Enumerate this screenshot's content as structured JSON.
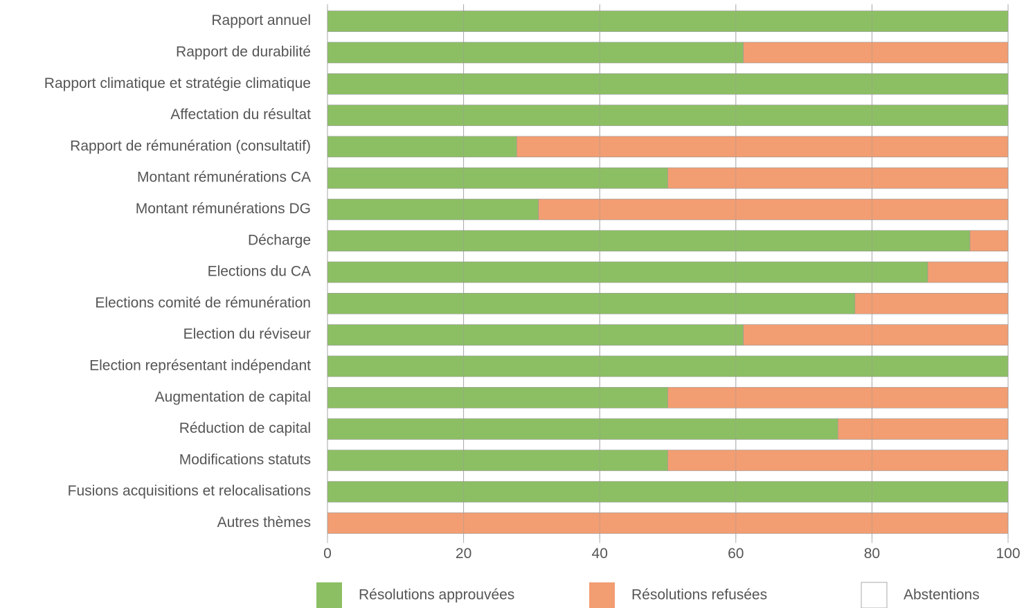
{
  "chart_data": {
    "type": "bar",
    "orientation": "horizontal",
    "stacked": true,
    "categories": [
      "Rapport annuel",
      "Rapport de durabilité",
      "Rapport climatique et stratégie climatique",
      "Affectation du résultat",
      "Rapport de rémunération (consultatif)",
      "Montant rémunérations CA",
      "Montant rémunérations DG",
      "Décharge",
      "Elections du CA",
      "Elections comité de rémunération",
      "Election du réviseur",
      "Election représentant indépendant",
      "Augmentation de capital",
      "Réduction de capital",
      "Modifications statuts",
      "Fusions acquisitions et relocalisations",
      "Autres thèmes"
    ],
    "series": [
      {
        "name": "Résolutions approuvées",
        "color": "#8cbf63",
        "values": [
          100,
          61.1,
          100,
          100,
          27.8,
          50,
          31.0,
          94.4,
          88.2,
          77.5,
          61.1,
          100,
          50,
          75,
          50,
          100,
          0
        ]
      },
      {
        "name": "Résolutions refusées",
        "color": "#f29d72",
        "values": [
          0,
          38.9,
          0,
          0,
          72.2,
          50,
          69.0,
          5.6,
          11.8,
          22.5,
          38.9,
          0,
          50,
          25,
          50,
          0,
          100
        ]
      },
      {
        "name": "Abstentions",
        "color": "#ffffff",
        "values": [
          0,
          0,
          0,
          0,
          0,
          0,
          0,
          0,
          0,
          0,
          0,
          0,
          0,
          0,
          0,
          0,
          0
        ]
      }
    ],
    "xlim": [
      0,
      100
    ],
    "xticks": [
      "0",
      "20",
      "40",
      "60",
      "80",
      "100"
    ],
    "grid": "vertical",
    "legend_position": "bottom",
    "title": "",
    "xlabel": "",
    "ylabel": ""
  }
}
